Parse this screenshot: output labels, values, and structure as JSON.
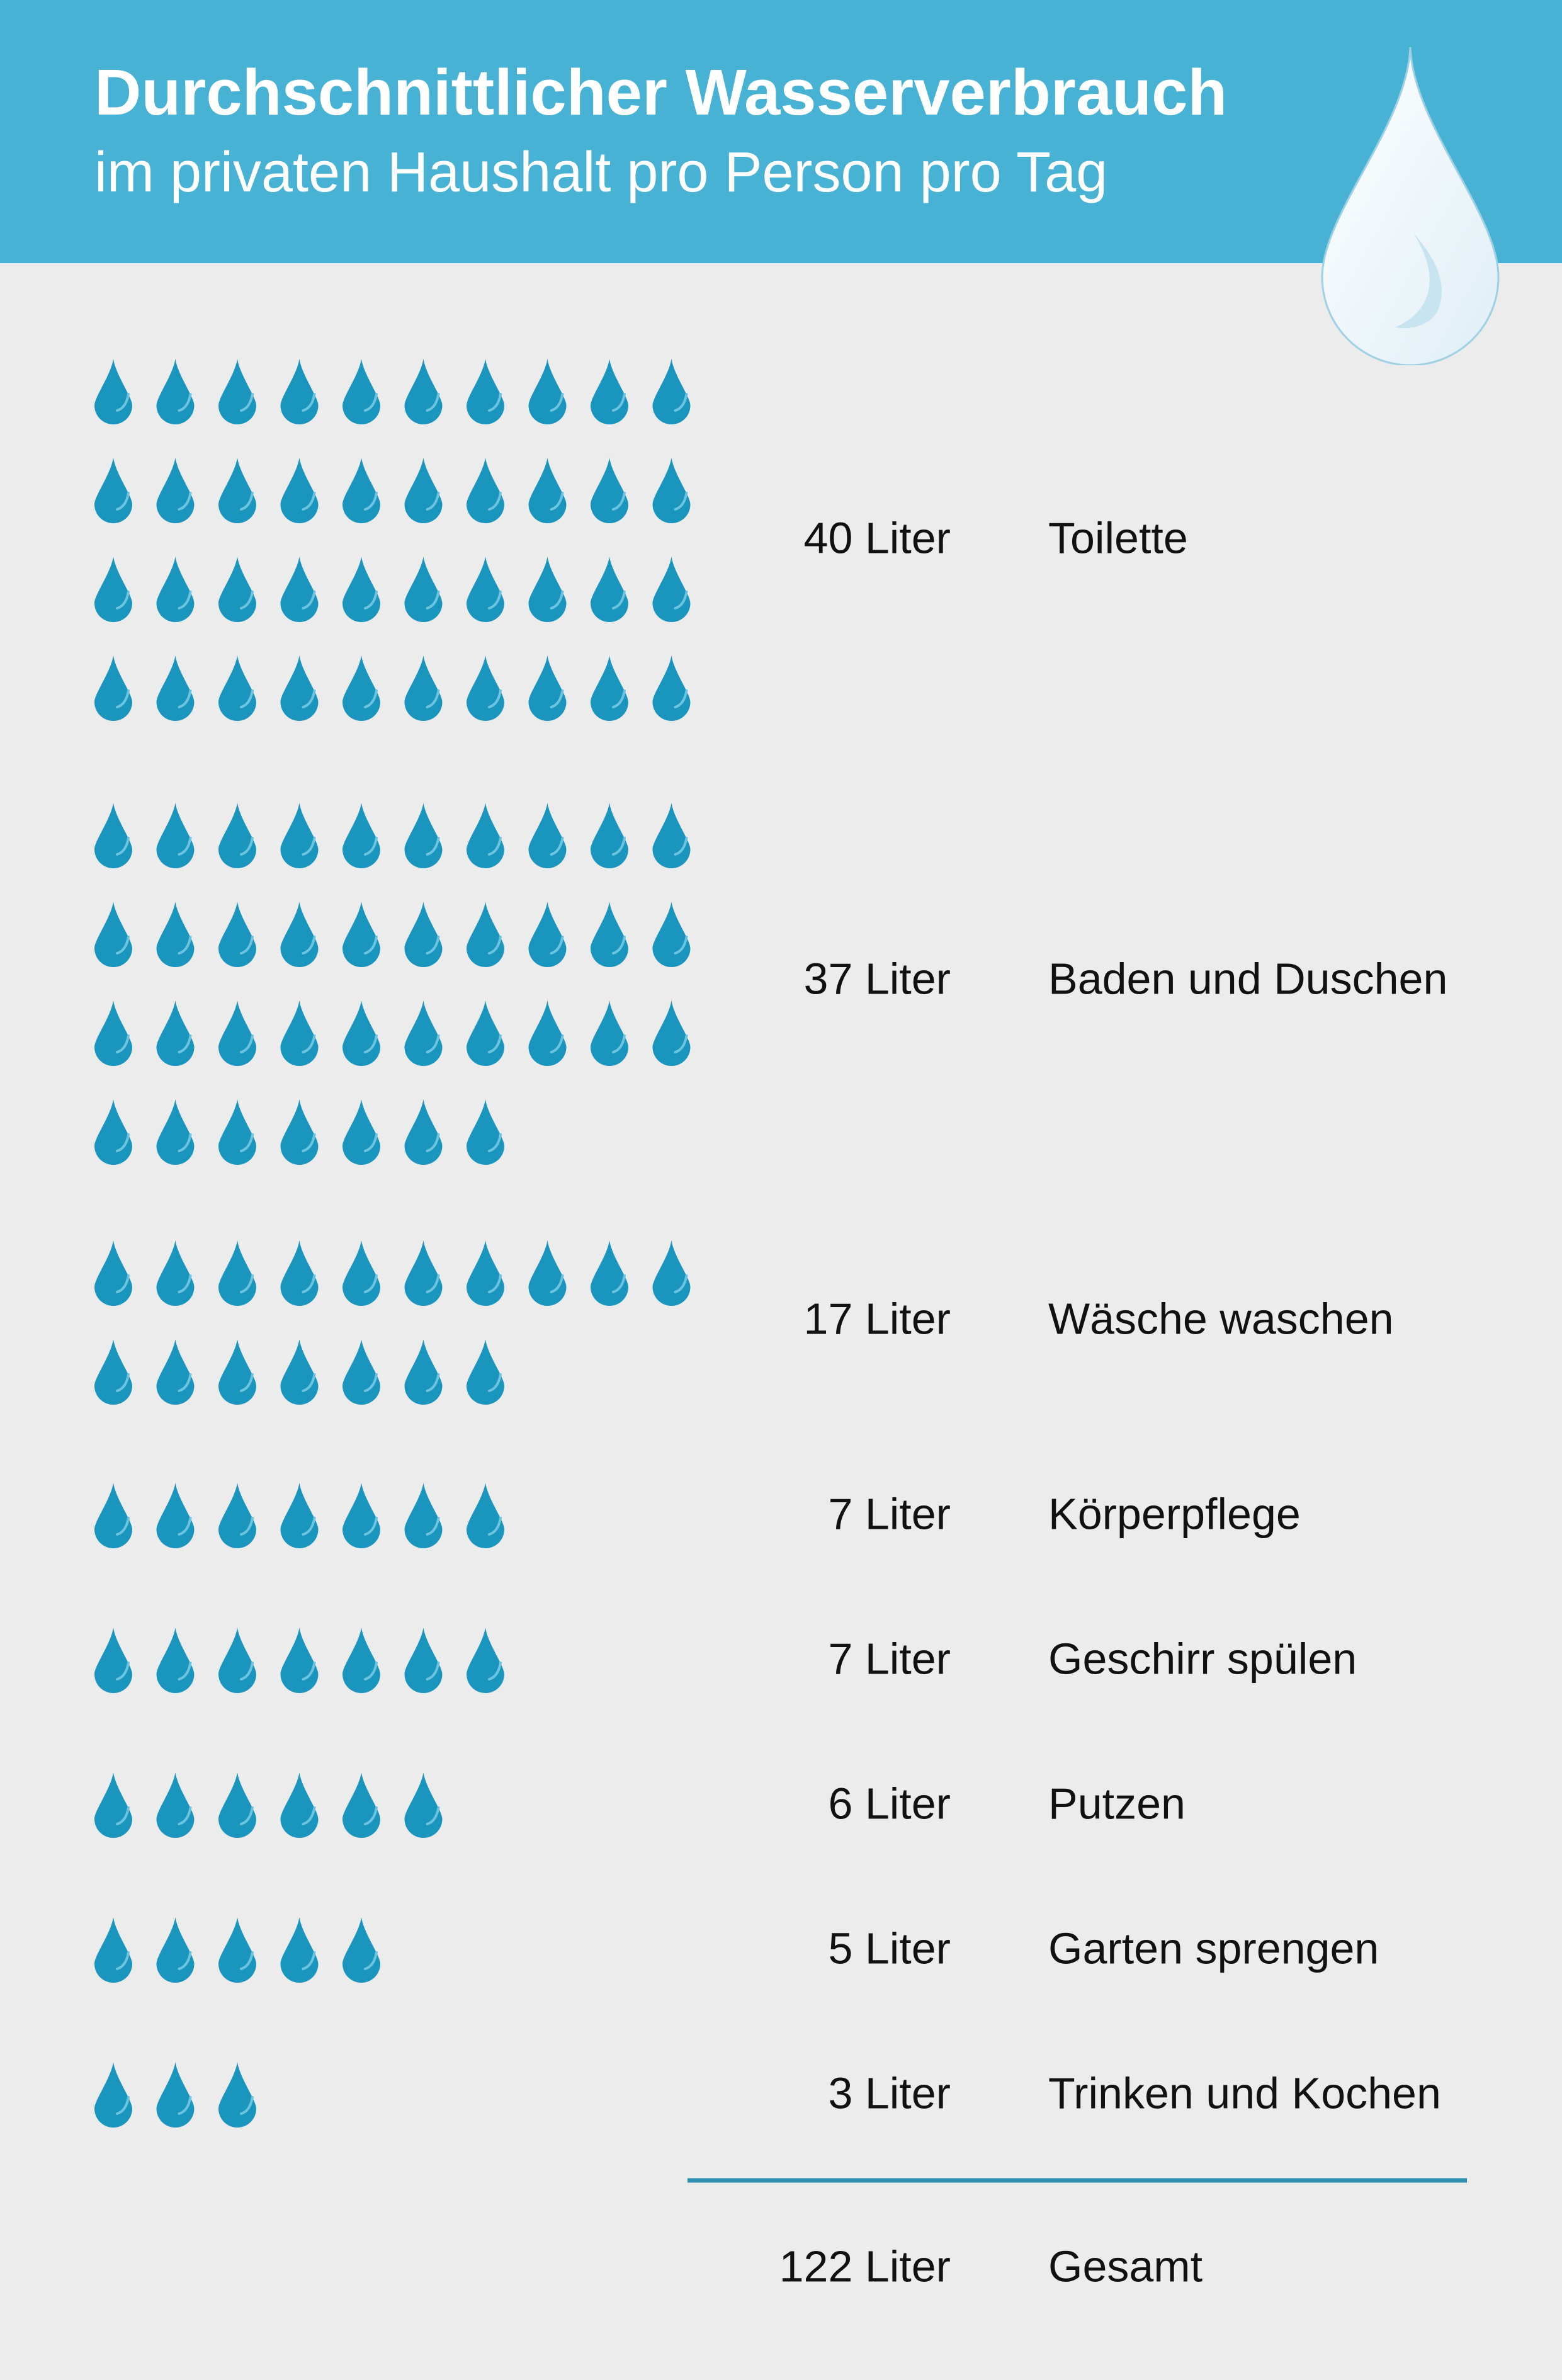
{
  "header": {
    "title": "Durchschnittlicher Wasserverbrauch",
    "subtitle": "im privaten Haushalt pro Person pro Tag"
  },
  "colors": {
    "header_background": "#48b2d4",
    "page_background": "#ececec",
    "drop_color": "#1a95be",
    "divider_color": "#2e8fb0"
  },
  "icons": {
    "unit_icon": "water-drop-icon",
    "header_icon": "water-drop-icon"
  },
  "chart_data": {
    "type": "pictograph",
    "unit": "Liter",
    "drops_per_unit": 1,
    "categories": [
      "Toilette",
      "Baden und Duschen",
      "Wäsche waschen",
      "Körperpflege",
      "Geschirr spülen",
      "Putzen",
      "Garten sprengen",
      "Trinken und Kochen"
    ],
    "values": [
      40,
      37,
      17,
      7,
      7,
      6,
      5,
      3
    ],
    "value_labels": [
      "40 Liter",
      "37 Liter",
      "17 Liter",
      "7 Liter",
      "7 Liter",
      "6 Liter",
      "5 Liter",
      "3 Liter"
    ],
    "total": {
      "label": "Gesamt",
      "value": 122,
      "value_label": "122 Liter"
    }
  }
}
